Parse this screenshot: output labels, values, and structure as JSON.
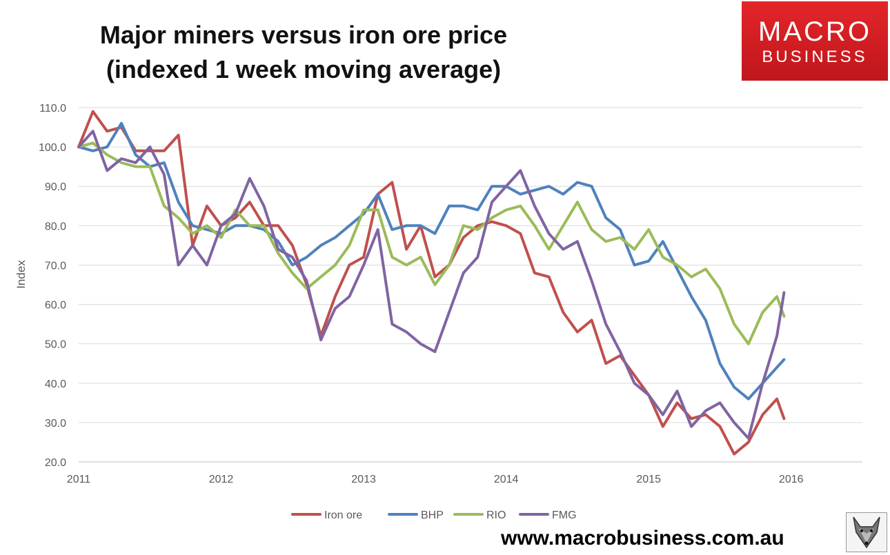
{
  "title_line1": "Major miners versus iron ore price",
  "title_line2": "(indexed 1 week moving average)",
  "logo": {
    "line1": "MACRO",
    "line2": "BUSINESS",
    "color": "#d7191e"
  },
  "website": "www.macrobusiness.com.au",
  "fox_icon": "fox-logo-icon",
  "chart_data": {
    "type": "line",
    "title": "Major miners versus iron ore price (indexed 1 week moving average)",
    "xlabel": "",
    "ylabel": "Index",
    "ylim": [
      20,
      110
    ],
    "xlim": [
      2011.0,
      2016.5
    ],
    "y_ticks": [
      "20.0",
      "30.0",
      "40.0",
      "50.0",
      "60.0",
      "70.0",
      "80.0",
      "90.0",
      "100.0",
      "110.0"
    ],
    "x_ticks": [
      "2011",
      "2012",
      "2013",
      "2014",
      "2015",
      "2016"
    ],
    "grid": "horizontal",
    "legend": "bottom",
    "x": [
      2011.0,
      2011.1,
      2011.2,
      2011.3,
      2011.4,
      2011.5,
      2011.6,
      2011.7,
      2011.8,
      2011.9,
      2012.0,
      2012.1,
      2012.2,
      2012.3,
      2012.4,
      2012.5,
      2012.6,
      2012.7,
      2012.8,
      2012.9,
      2013.0,
      2013.1,
      2013.2,
      2013.3,
      2013.4,
      2013.5,
      2013.6,
      2013.7,
      2013.8,
      2013.9,
      2014.0,
      2014.1,
      2014.2,
      2014.3,
      2014.4,
      2014.5,
      2014.6,
      2014.7,
      2014.8,
      2014.9,
      2015.0,
      2015.1,
      2015.2,
      2015.3,
      2015.4,
      2015.5,
      2015.6,
      2015.7,
      2015.8,
      2015.9,
      2015.95
    ],
    "series": [
      {
        "name": "Iron ore",
        "color": "#c0504d",
        "values": [
          100,
          109,
          104,
          105,
          99,
          99,
          99,
          103,
          75,
          85,
          80,
          82,
          86,
          80,
          80,
          75,
          65,
          52,
          62,
          70,
          72,
          88,
          91,
          74,
          80,
          67,
          70,
          77,
          80,
          81,
          80,
          78,
          68,
          67,
          58,
          53,
          56,
          45,
          47,
          42,
          37,
          29,
          35,
          31,
          32,
          29,
          22,
          25,
          32,
          36,
          31
        ]
      },
      {
        "name": "BHP",
        "color": "#4f81bd",
        "values": [
          100,
          99,
          100,
          106,
          98,
          95,
          96,
          86,
          80,
          79,
          78,
          80,
          80,
          79,
          76,
          70,
          72,
          75,
          77,
          80,
          83,
          88,
          79,
          80,
          80,
          78,
          85,
          85,
          84,
          90,
          90,
          88,
          89,
          90,
          88,
          91,
          90,
          82,
          79,
          70,
          71,
          76,
          69,
          62,
          56,
          45,
          39,
          36,
          40,
          44,
          46
        ]
      },
      {
        "name": "RIO",
        "color": "#9bbb59",
        "values": [
          100,
          101,
          98,
          96,
          95,
          95,
          85,
          82,
          78,
          80,
          77,
          84,
          80,
          80,
          73,
          68,
          64,
          67,
          70,
          75,
          84,
          84,
          72,
          70,
          72,
          65,
          70,
          80,
          79,
          82,
          84,
          85,
          80,
          74,
          80,
          86,
          79,
          76,
          77,
          74,
          79,
          72,
          70,
          67,
          69,
          64,
          55,
          50,
          58,
          62,
          57
        ]
      },
      {
        "name": "FMG",
        "color": "#8064a2",
        "values": [
          100,
          104,
          94,
          97,
          96,
          100,
          93,
          70,
          75,
          70,
          80,
          83,
          92,
          85,
          74,
          72,
          66,
          51,
          59,
          62,
          70,
          79,
          55,
          53,
          50,
          48,
          58,
          68,
          72,
          86,
          90,
          94,
          85,
          78,
          74,
          76,
          66,
          55,
          48,
          40,
          37,
          32,
          38,
          29,
          33,
          35,
          30,
          26,
          40,
          52,
          63
        ]
      }
    ]
  }
}
